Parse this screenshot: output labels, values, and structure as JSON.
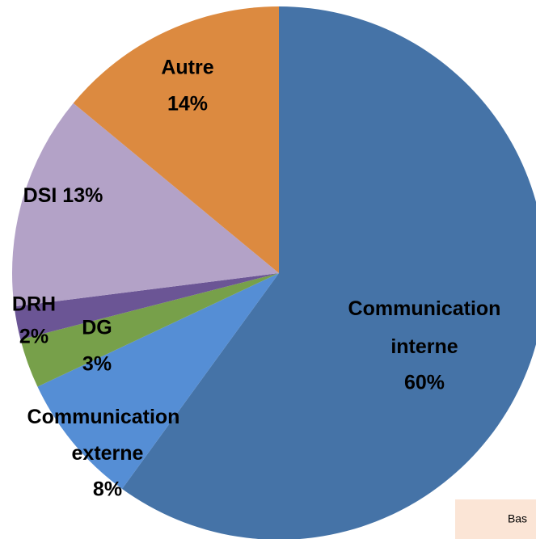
{
  "chart_data": {
    "type": "pie",
    "categories": [
      "Communication interne",
      "Communication externe",
      "DG",
      "DRH",
      "DSI",
      "Autre"
    ],
    "values": [
      60,
      8,
      3,
      2,
      13,
      14
    ],
    "value_labels": [
      "60%",
      "8%",
      "3%",
      "2%",
      "13%",
      "14%"
    ],
    "colors": [
      "#4573a7",
      "#558ed5",
      "#77a04a",
      "#6b5595",
      "#b3a2c7",
      "#dc8a40"
    ],
    "note": "Bas"
  }
}
